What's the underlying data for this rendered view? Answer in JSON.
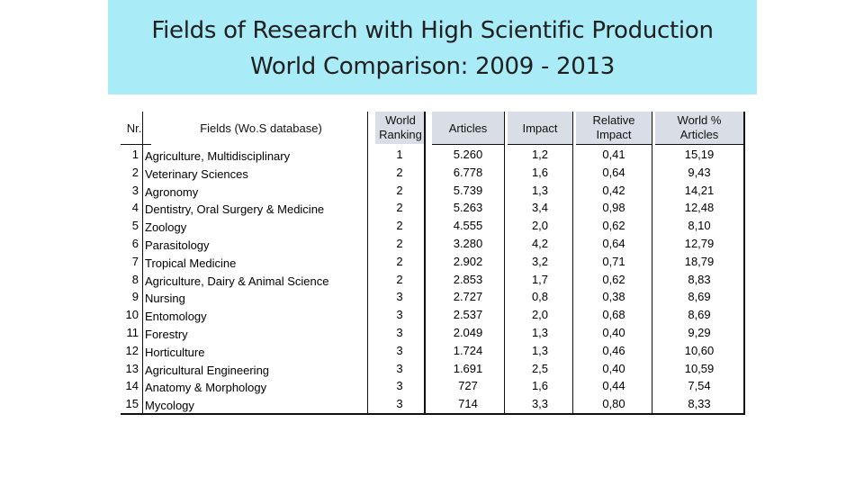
{
  "title": {
    "line1": "Fields of Research with High Scientific Production",
    "line2": "World Comparison: 2009 - 2013"
  },
  "table": {
    "headers": {
      "nr": "Nr.",
      "field": "Fields (Wo.S database)",
      "ranking": "World Ranking",
      "articles": "Articles",
      "impact": "Impact",
      "relative_impact": "Relative Impact",
      "world_pct": "World % Articles"
    },
    "rows": [
      {
        "nr": "1",
        "field": "Agriculture, Multidisciplinary",
        "ranking": "1",
        "articles": "5.260",
        "impact": "1,2",
        "relative_impact": "0,41",
        "world_pct": "15,19"
      },
      {
        "nr": "2",
        "field": "Veterinary Sciences",
        "ranking": "2",
        "articles": "6.778",
        "impact": "1,6",
        "relative_impact": "0,64",
        "world_pct": "9,43"
      },
      {
        "nr": "3",
        "field": "Agronomy",
        "ranking": "2",
        "articles": "5.739",
        "impact": "1,3",
        "relative_impact": "0,42",
        "world_pct": "14,21"
      },
      {
        "nr": "4",
        "field": "Dentistry, Oral Surgery & Medicine",
        "ranking": "2",
        "articles": "5.263",
        "impact": "3,4",
        "relative_impact": "0,98",
        "world_pct": "12,48"
      },
      {
        "nr": "5",
        "field": "Zoology",
        "ranking": "2",
        "articles": "4.555",
        "impact": "2,0",
        "relative_impact": "0,62",
        "world_pct": "8,10"
      },
      {
        "nr": "6",
        "field": "Parasitology",
        "ranking": "2",
        "articles": "3.280",
        "impact": "4,2",
        "relative_impact": "0,64",
        "world_pct": "12,79"
      },
      {
        "nr": "7",
        "field": "Tropical Medicine",
        "ranking": "2",
        "articles": "2.902",
        "impact": "3,2",
        "relative_impact": "0,71",
        "world_pct": "18,79"
      },
      {
        "nr": "8",
        "field": "Agriculture, Dairy & Animal Science",
        "ranking": "2",
        "articles": "2.853",
        "impact": "1,7",
        "relative_impact": "0,62",
        "world_pct": "8,83"
      },
      {
        "nr": "9",
        "field": "Nursing",
        "ranking": "3",
        "articles": "2.727",
        "impact": "0,8",
        "relative_impact": "0,38",
        "world_pct": "8,69"
      },
      {
        "nr": "10",
        "field": "Entomology",
        "ranking": "3",
        "articles": "2.537",
        "impact": "2,0",
        "relative_impact": "0,68",
        "world_pct": "8,69"
      },
      {
        "nr": "11",
        "field": "Forestry",
        "ranking": "3",
        "articles": "2.049",
        "impact": "1,3",
        "relative_impact": "0,40",
        "world_pct": "9,29"
      },
      {
        "nr": "12",
        "field": "Horticulture",
        "ranking": "3",
        "articles": "1.724",
        "impact": "1,3",
        "relative_impact": "0,46",
        "world_pct": "10,60"
      },
      {
        "nr": "13",
        "field": "Agricultural Engineering",
        "ranking": "3",
        "articles": "1.691",
        "impact": "2,5",
        "relative_impact": "0,40",
        "world_pct": "10,59"
      },
      {
        "nr": "14",
        "field": "Anatomy & Morphology",
        "ranking": "3",
        "articles": "727",
        "impact": "1,6",
        "relative_impact": "0,44",
        "world_pct": "7,54"
      },
      {
        "nr": "15",
        "field": "Mycology",
        "ranking": "3",
        "articles": "714",
        "impact": "3,3",
        "relative_impact": "0,80",
        "world_pct": "8,33"
      }
    ]
  },
  "colors": {
    "banner": "#a9ecf7",
    "header_bg": "#d9dee6"
  }
}
